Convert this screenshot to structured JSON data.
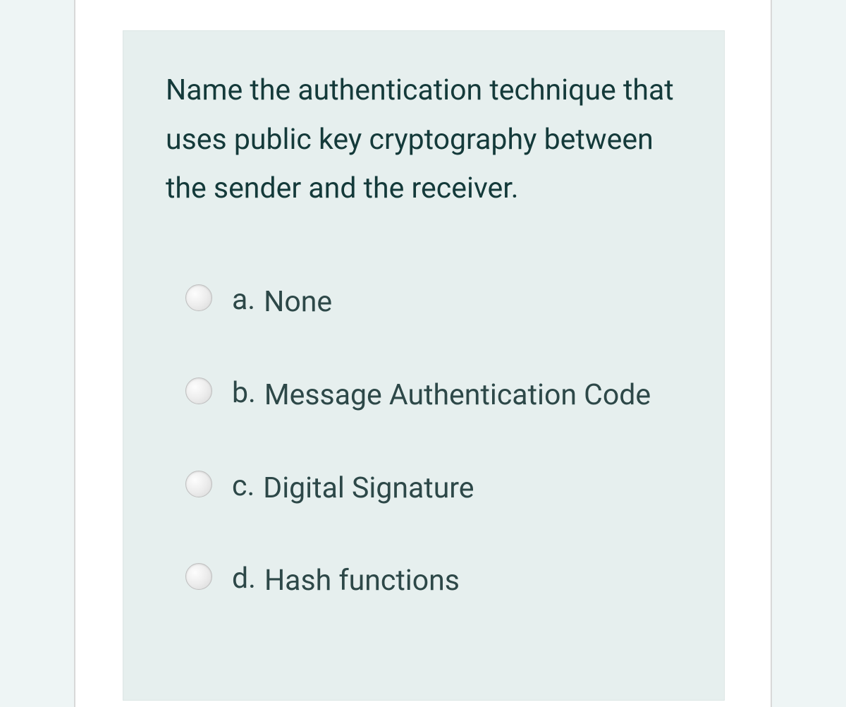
{
  "question": {
    "text": "Name the authentication technique that uses public key cryptography between the sender and the receiver.",
    "options": [
      {
        "letter": "a.",
        "text": "None"
      },
      {
        "letter": "b.",
        "text": "Message Authentication Code"
      },
      {
        "letter": "c.",
        "text": "Digital Signature"
      },
      {
        "letter": "d.",
        "text": "Hash functions"
      }
    ]
  },
  "styling": {
    "page_background": "#eef5f5",
    "card_background": "#e6efee",
    "card_border": "#dce6e5",
    "wrapper_background": "#ffffff",
    "wrapper_border": "#d8d8d8",
    "question_text_color": "#143a3a",
    "option_text_color": "#2d4848",
    "radio_border": "#bfbfbf",
    "font_size_main": 41
  }
}
